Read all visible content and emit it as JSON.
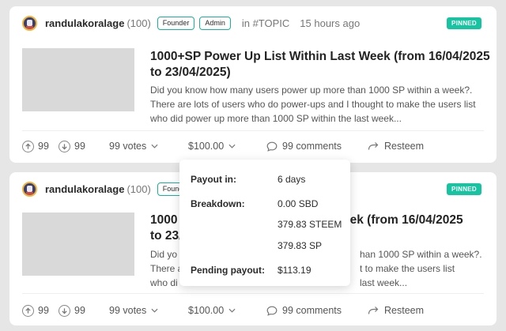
{
  "posts": [
    {
      "author": "randulakoralage",
      "reputation": "(100)",
      "badges": [
        "Founder",
        "Admin"
      ],
      "community": "in #TOPIC",
      "time_ago": "15 hours ago",
      "pinned_label": "PINNED",
      "title": "1000+SP Power Up List Within Last Week (from 16/04/2025 to 23/04/2025)",
      "excerpt": "Did you know how many users power up more than 1000 SP within a week?. There are lots of users who do power-ups and I thought to make the users list who did power up more than 1000 SP within the last week...",
      "upvotes": "99",
      "downvotes": "99",
      "votes": "99 votes",
      "payout": "$100.00",
      "comments": "99 comments",
      "resteem": "Resteem"
    },
    {
      "author": "randulakoralage",
      "reputation": "(100)",
      "badges": [
        "Founder"
      ],
      "pinned_label": "PINNED",
      "title_left": "1000",
      "title_right": "eek (from 16/04/2025",
      "title_left2": "to 23/",
      "excerpt_left": [
        "Did yo",
        "There a",
        "who di"
      ],
      "excerpt_right": [
        "han 1000 SP within a week?.",
        "t to make the users list",
        "last week..."
      ],
      "upvotes": "99",
      "downvotes": "99",
      "votes": "99 votes",
      "payout": "$100.00",
      "comments": "99 comments",
      "resteem": "Resteem"
    }
  ],
  "payout_dropdown": {
    "payout_in_label": "Payout in:",
    "payout_in_value": "6 days",
    "breakdown_label": "Breakdown:",
    "breakdown_values": [
      "0.00 SBD",
      "379.83 STEEM",
      "379.83 SP"
    ],
    "pending_label": "Pending payout:",
    "pending_value": "$113.19"
  },
  "colors": {
    "accent": "#17c4a1",
    "badge_border": "#17b29d"
  },
  "icons": [
    "avatar",
    "upvote-icon",
    "downvote-icon",
    "chevron-down-icon",
    "comment-icon",
    "resteem-icon"
  ]
}
